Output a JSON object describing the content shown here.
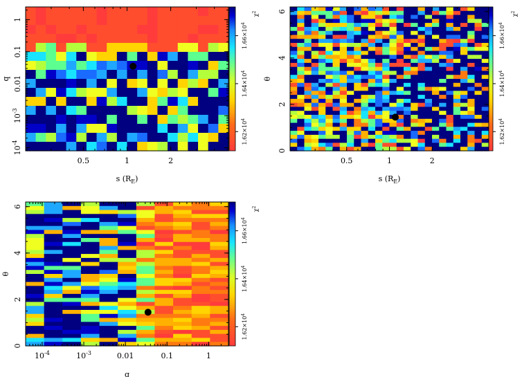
{
  "chart_data": [
    {
      "id": "s-q",
      "type": "heatmap",
      "title": "",
      "xlabel": "s (R_E)",
      "ylabel": "q",
      "x_scale": "log",
      "y_scale": "log",
      "xlim": [
        0.2,
        5.0
      ],
      "ylim": [
        8e-05,
        2.5
      ],
      "x_ticks": [
        0.5,
        1,
        2
      ],
      "x_tick_labels": [
        "0.5",
        "1",
        "2"
      ],
      "y_ticks": [
        0.0001,
        0.001,
        0.01,
        0.1,
        1
      ],
      "y_tick_labels": [
        "10^-4",
        "10^-3",
        "0.01",
        "0.1",
        "1"
      ],
      "grid_cols": 20,
      "grid_rows": 16,
      "best_fit_point": {
        "s": 1.1,
        "q": 0.035
      },
      "colorbar": {
        "label": "χ²",
        "ticks": [
          16200,
          16400,
          16600
        ],
        "tick_labels": [
          "1.62×10^4",
          "1.64×10^4",
          "1.66×10^4"
        ],
        "scale": "red (low) → yellow → cyan → dark blue (high)"
      },
      "colors": {
        "red": "#ff3b3b",
        "dark_blue": "#000080",
        "best_fit_marker": "#000000"
      }
    },
    {
      "id": "s-theta",
      "type": "heatmap",
      "title": "",
      "xlabel": "s (R_E)",
      "ylabel": "θ",
      "x_scale": "log",
      "y_scale": "linear",
      "xlim": [
        0.2,
        5.0
      ],
      "ylim": [
        0,
        6.2
      ],
      "x_ticks": [
        0.5,
        1,
        2
      ],
      "x_tick_labels": [
        "0.5",
        "1",
        "2"
      ],
      "y_ticks": [
        0,
        2,
        4,
        6
      ],
      "y_tick_labels": [
        "0",
        "2",
        "4",
        "6"
      ],
      "grid_cols": 28,
      "grid_rows": 36,
      "best_fit_point": {
        "s": 1.1,
        "theta": 1.45
      },
      "colorbar": {
        "label": "χ²",
        "ticks": [
          16200,
          16400,
          16600
        ],
        "tick_labels": [
          "1.62×10^4",
          "1.64×10^4",
          "1.66×10^4"
        ],
        "scale": "red (low) → yellow → cyan → dark blue (high)"
      },
      "colors": {
        "red": "#ff3b3b",
        "dark_blue": "#000080",
        "best_fit_marker": "#000000"
      }
    },
    {
      "id": "q-theta",
      "type": "heatmap",
      "title": "",
      "xlabel": "q",
      "ylabel": "θ",
      "x_scale": "log",
      "y_scale": "linear",
      "xlim": [
        4e-05,
        3.0
      ],
      "ylim": [
        0,
        6.2
      ],
      "x_ticks": [
        0.0001,
        0.001,
        0.01,
        0.1,
        1
      ],
      "x_tick_labels": [
        "10^-4",
        "10^-3",
        "0.01",
        "0.1",
        "1"
      ],
      "y_ticks": [
        0,
        2,
        4,
        6
      ],
      "y_tick_labels": [
        "0",
        "2",
        "4",
        "6"
      ],
      "grid_cols": 11,
      "grid_rows": 36,
      "best_fit_point": {
        "q": 0.035,
        "theta": 1.45
      },
      "colorbar": {
        "label": "χ²",
        "ticks": [
          16200,
          16400,
          16600
        ],
        "tick_labels": [
          "1.62×10^4",
          "1.64×10^4",
          "1.66×10^4"
        ],
        "scale": "red (low) → yellow → cyan → dark blue (high)"
      },
      "colors": {
        "red": "#ff3b3b",
        "dark_blue": "#000080",
        "best_fit_marker": "#000000"
      }
    }
  ]
}
